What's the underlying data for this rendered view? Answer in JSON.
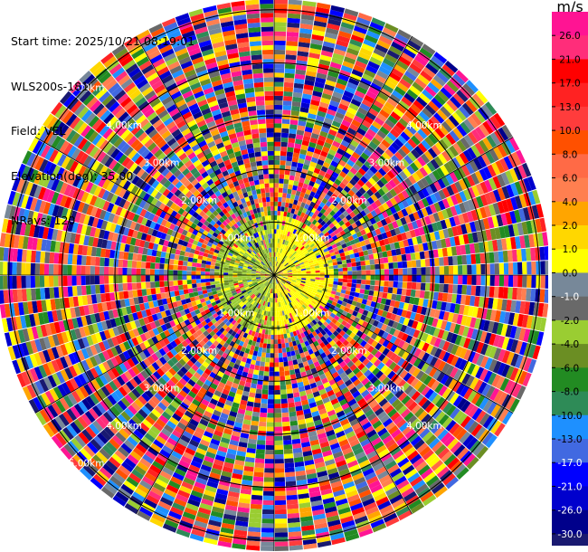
{
  "header": {
    "start_time": "Start time: 2025/10/21 08:19:01",
    "instrument": "WLS200s-181",
    "field": "Field: VEL",
    "elevation": "Elevation(deg): 35.00",
    "nrays": "NRays: 120"
  },
  "colorbar": {
    "unit": "m/s",
    "ticks": [
      "26.0",
      "21.0",
      "17.0",
      "13.0",
      "10.0",
      "8.0",
      "6.0",
      "4.0",
      "2.0",
      "1.0",
      "0.0",
      "-1.0",
      "-2.0",
      "-4.0",
      "-6.0",
      "-8.0",
      "-10.0",
      "-13.0",
      "-17.0",
      "-21.0",
      "-26.0",
      "-30.0"
    ],
    "colors": [
      "#ff1493",
      "#ff2d7a",
      "#ff0000",
      "#ff2222",
      "#ff3c3c",
      "#ff5000",
      "#ff6a46",
      "#ff7f50",
      "#ffa500",
      "#ffd700",
      "#ffff00",
      "#778899",
      "#696969",
      "#9acd32",
      "#6b8e23",
      "#228b22",
      "#2e8b57",
      "#1e90ff",
      "#4169e1",
      "#0000ff",
      "#0000cd",
      "#00008b",
      "#191970"
    ],
    "label_colors": [
      "#000000",
      "#000000",
      "#000000",
      "#000000",
      "#000000",
      "#000000",
      "#000000",
      "#000000",
      "#000000",
      "#000000",
      "#000000",
      "#ffffff",
      "#000000",
      "#000000",
      "#000000",
      "#000000",
      "#000000",
      "#000000",
      "#ffffff",
      "#ffffff",
      "#ffffff",
      "#ffffff"
    ]
  },
  "chart_data": {
    "type": "heatmap",
    "subtype": "polar PPI scan",
    "field": "VEL",
    "units": "m/s",
    "elevation_deg": 35.0,
    "n_rays": 120,
    "range_rings_km": [
      1,
      2,
      3,
      4,
      5
    ],
    "range_ring_labels": [
      "1.00km",
      "2.00km",
      "3.00km",
      "4.00km",
      "5.00km"
    ],
    "max_range_km": 5.2,
    "color_scale": "discrete, -30.0 to 26.0 m/s",
    "pattern": "near range (< ~1 km) dominated by yellow (+1 to +4 m/s) east sector and green/olive (-1 to -6 m/s) west sector; beyond ~1.5 km noisy values spanning full color scale",
    "grid": true
  }
}
